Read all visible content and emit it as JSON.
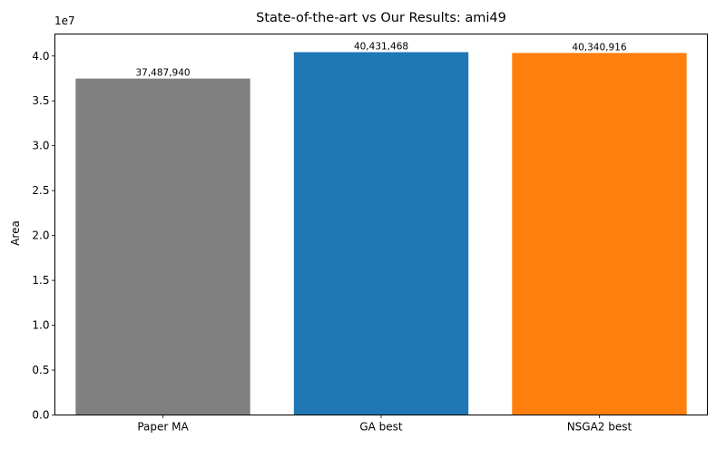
{
  "chart_data": {
    "type": "bar",
    "title": "State-of-the-art vs Our Results: ami49",
    "xlabel": "",
    "ylabel": "Area",
    "offset_label": "1e7",
    "categories": [
      "Paper MA",
      "GA best",
      "NSGA2 best"
    ],
    "values": [
      37487940,
      40431468,
      40340916
    ],
    "value_labels": [
      "37,487,940",
      "40,431,468",
      "40,340,916"
    ],
    "colors": [
      "#808080",
      "#1f77b4",
      "#ff7f0e"
    ],
    "ylim": [
      0,
      42453041
    ],
    "yticks": [
      0,
      5000000,
      10000000,
      15000000,
      20000000,
      25000000,
      30000000,
      35000000,
      40000000
    ],
    "ytick_labels": [
      "0.0",
      "0.5",
      "1.0",
      "1.5",
      "2.0",
      "2.5",
      "3.0",
      "3.5",
      "4.0"
    ],
    "grid": false,
    "legend": "none"
  }
}
